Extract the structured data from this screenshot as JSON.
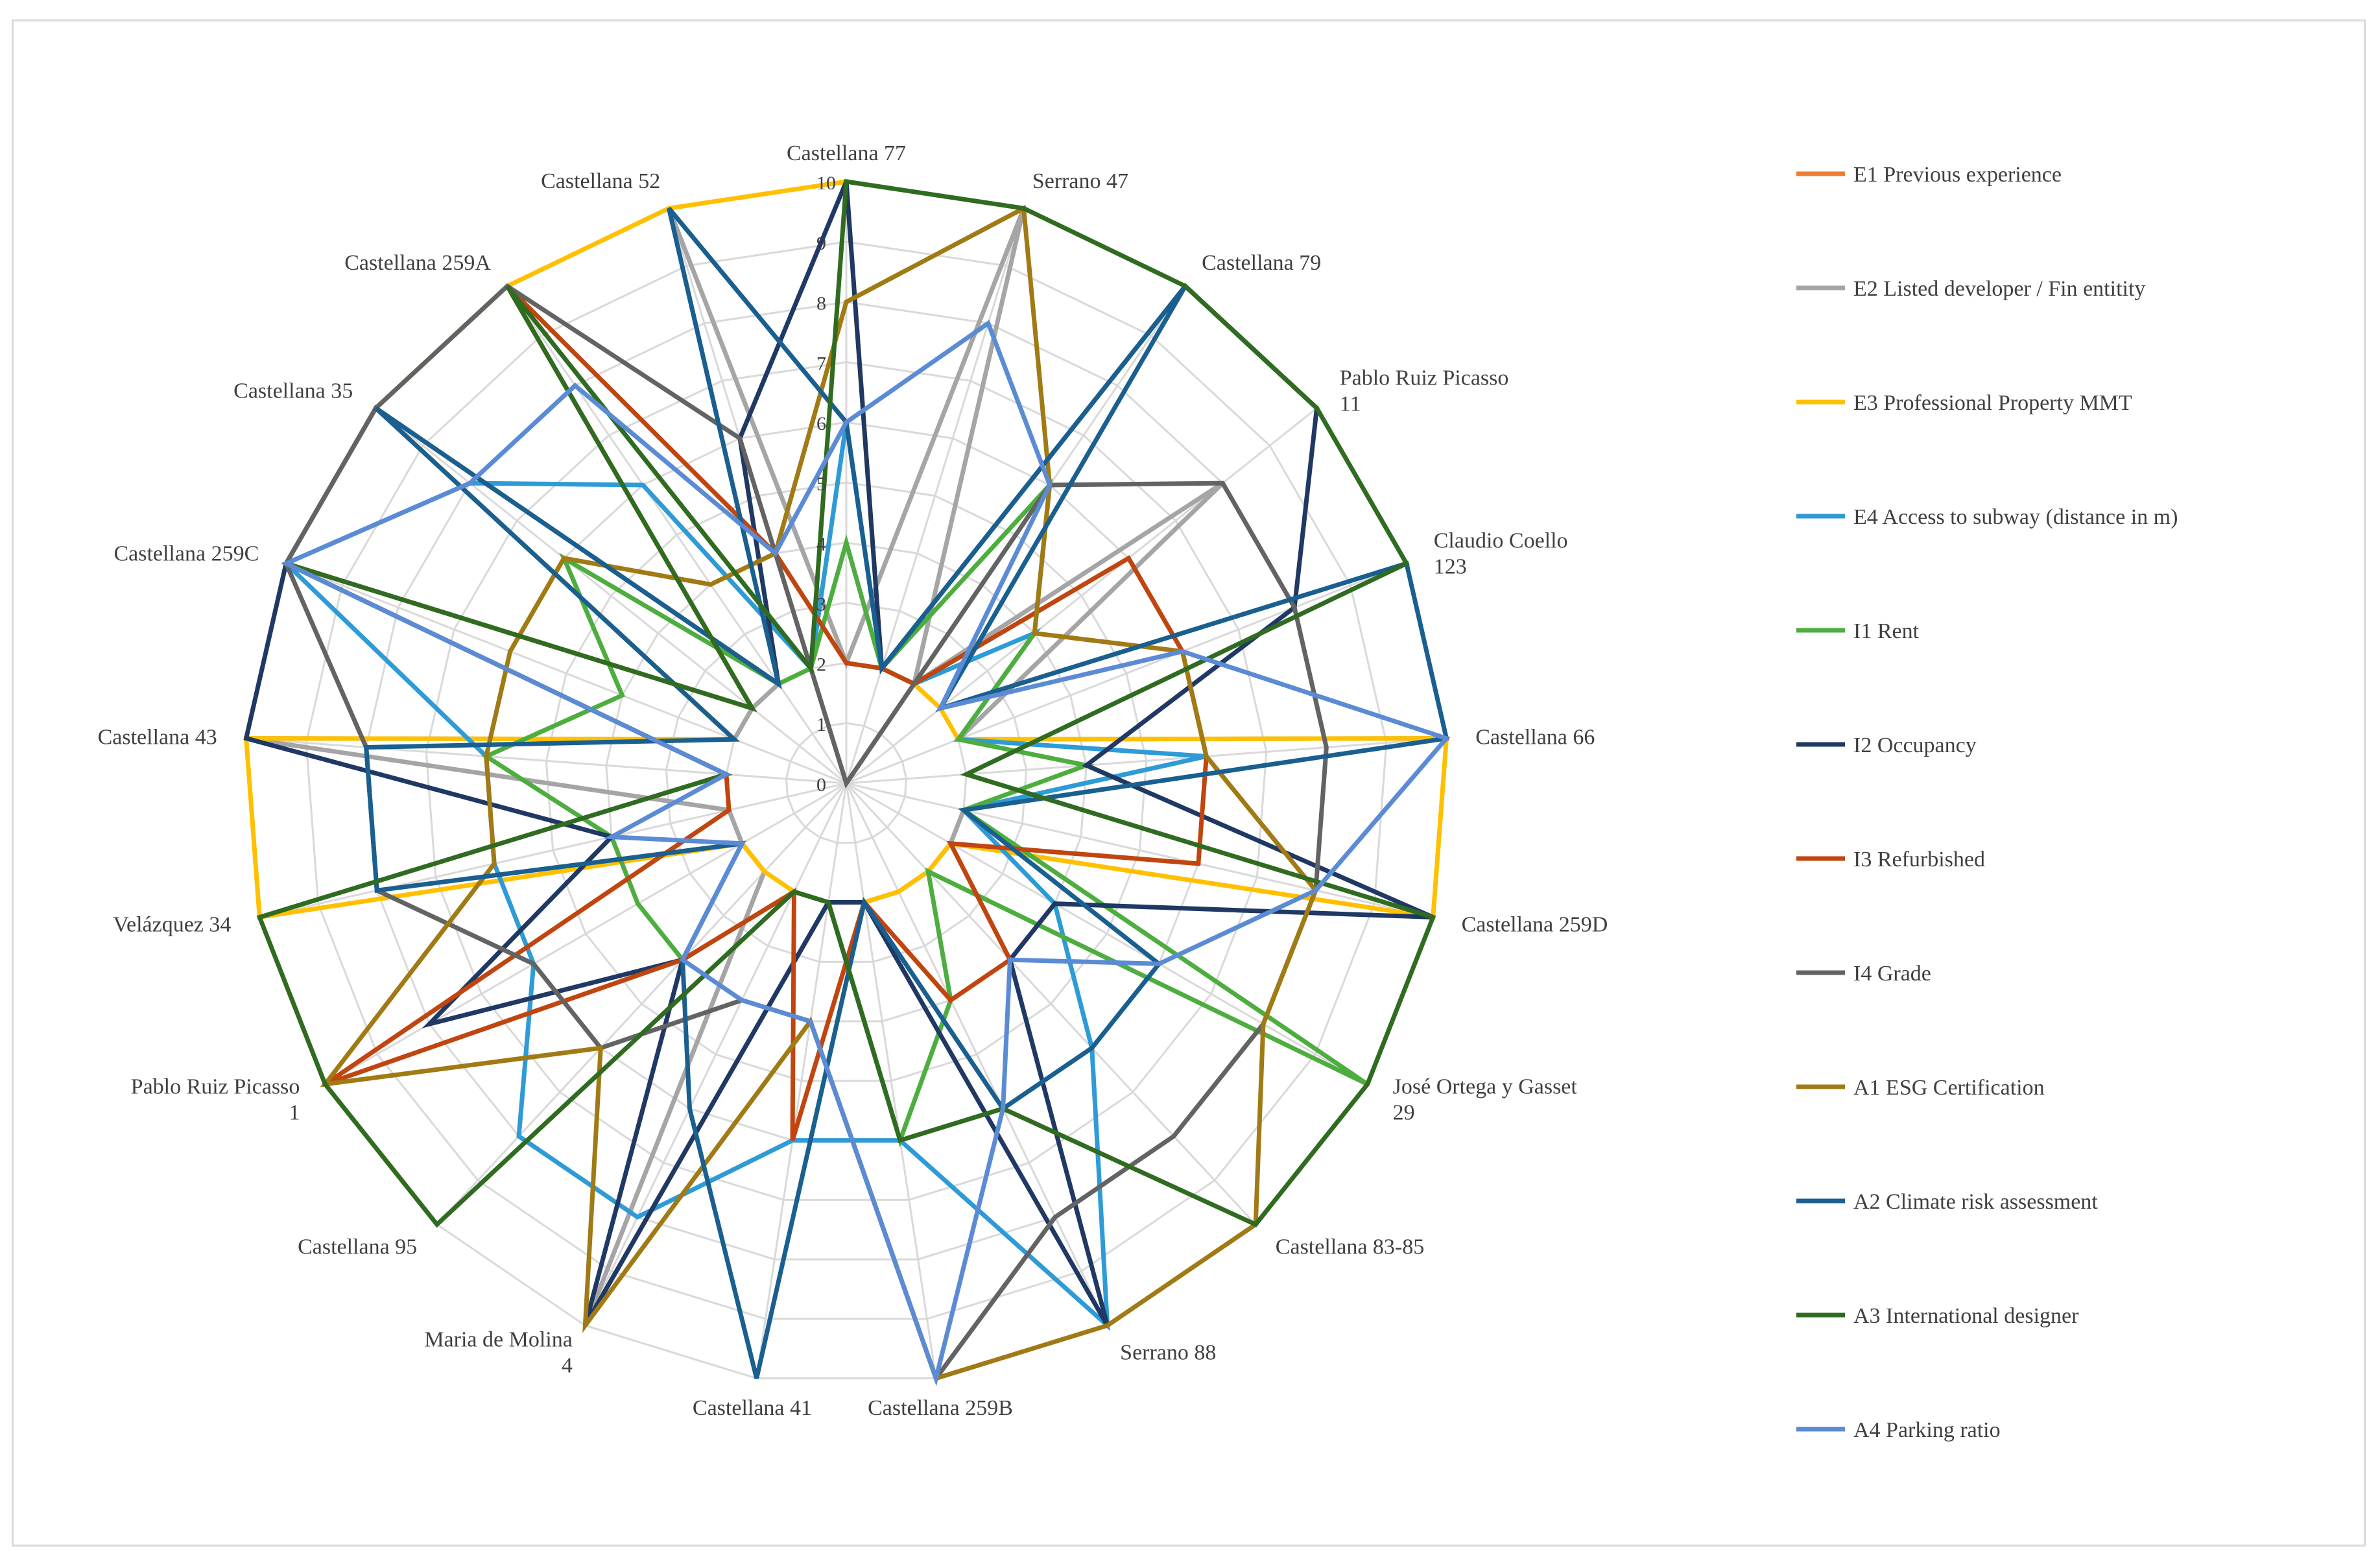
{
  "chart_data": {
    "type": "radar",
    "rmin": 0,
    "rmax": 10,
    "ticks": [
      "0",
      "1",
      "2",
      "3",
      "4",
      "5",
      "6",
      "7",
      "8",
      "9",
      "10"
    ],
    "grid": true,
    "legend_position": "right",
    "categories": [
      "Castellana 77",
      "Serrano 47",
      "Castellana 79",
      "Pablo Ruiz Picasso 11",
      "Claudio Coello 123",
      "Castellana 66",
      "Castellana 259D",
      "José Ortega y Gasset 29",
      "Castellana 83-85",
      "Serrano 88",
      "Castellana 259B",
      "Castellana 41",
      "Maria de Molina 4",
      "Castellana 95",
      "Pablo Ruiz Picasso 1",
      "Velázquez 34",
      "Castellana 43",
      "Castellana 259C",
      "Castellana 35",
      "Castellana 259A",
      "Castellana 52"
    ],
    "series": [
      {
        "name": "E1 Previous experience",
        "color": "#ED7D31",
        "values": [
          0,
          0,
          0,
          0,
          0,
          0,
          0,
          0,
          0,
          0,
          0,
          0,
          0,
          0,
          0,
          0,
          0,
          0,
          0,
          0,
          0
        ]
      },
      {
        "name": "E2 Listed developer / Fin entitity",
        "color": "#A5A5A5",
        "values": [
          2,
          10,
          2,
          8,
          2,
          10,
          2,
          2,
          2,
          2,
          2,
          2,
          10,
          2,
          2,
          2,
          10,
          2,
          2,
          2,
          10
        ]
      },
      {
        "name": "E3 Professional Property MMT",
        "color": "#FFC000",
        "values": [
          10,
          2,
          2,
          2,
          2,
          10,
          10,
          2,
          2,
          2,
          2,
          2,
          2,
          2,
          2,
          10,
          10,
          2,
          10,
          10,
          10
        ]
      },
      {
        "name": "E4 Access to subway (distance in m)",
        "color": "#2E9BD6",
        "values": [
          6,
          2,
          2,
          4,
          2,
          6,
          2,
          4,
          6,
          10,
          6,
          6,
          8,
          8,
          6,
          6,
          6,
          10,
          8,
          6,
          2
        ]
      },
      {
        "name": "I1 Rent",
        "color": "#4EAD3F",
        "values": [
          4,
          2,
          6,
          4,
          2,
          4,
          2,
          10,
          2,
          4,
          6,
          2,
          2,
          4,
          4,
          4,
          6,
          4,
          6,
          2,
          2
        ]
      },
      {
        "name": "I2 Occupancy",
        "color": "#1F3864",
        "values": [
          10,
          2,
          10,
          10,
          8,
          4,
          10,
          4,
          4,
          10,
          2,
          2,
          10,
          4,
          8,
          4,
          10,
          10,
          10,
          2,
          6
        ]
      },
      {
        "name": "I3 Refurbished",
        "color": "#C0450F",
        "values": [
          2,
          2,
          2,
          6,
          6,
          6,
          6,
          2,
          4,
          4,
          2,
          6,
          2,
          4,
          10,
          2,
          2,
          10,
          2,
          10,
          4
        ]
      },
      {
        "name": "I4 Grade",
        "color": "#636363",
        "values": [
          0,
          0,
          6,
          8,
          8,
          8,
          8,
          8,
          8,
          8,
          10,
          4,
          4,
          6,
          6,
          8,
          8,
          10,
          10,
          10,
          6
        ]
      },
      {
        "name": "A1 ESG Certification",
        "color": "#A07A14",
        "values": [
          8,
          10,
          6,
          4,
          6,
          6,
          8,
          8,
          10,
          10,
          10,
          4,
          10,
          6,
          10,
          6,
          6,
          6,
          6,
          4,
          4
        ]
      },
      {
        "name": "A2 Climate risk assessment",
        "color": "#195F8F",
        "values": [
          6,
          2,
          10,
          2,
          10,
          10,
          2,
          6,
          6,
          6,
          2,
          10,
          6,
          4,
          2,
          8,
          8,
          2,
          10,
          2,
          10
        ]
      },
      {
        "name": "A3 International designer",
        "color": "#2F6B20",
        "values": [
          10,
          10,
          10,
          10,
          10,
          2,
          10,
          10,
          10,
          6,
          6,
          2,
          2,
          10,
          10,
          10,
          2,
          10,
          2,
          10,
          2
        ]
      },
      {
        "name": "A4 Parking ratio",
        "color": "#5B8BD5",
        "values": [
          6,
          8,
          6,
          2,
          6,
          10,
          8,
          6,
          4,
          6,
          10,
          4,
          4,
          4,
          2,
          4,
          2,
          10,
          8,
          8,
          4
        ]
      }
    ]
  }
}
